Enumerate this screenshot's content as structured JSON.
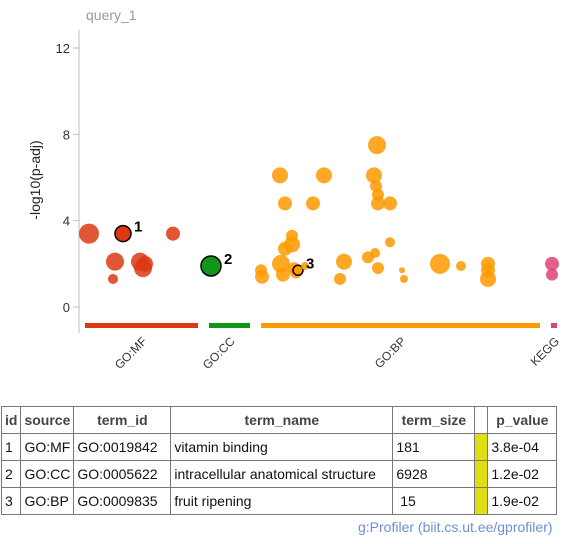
{
  "chart_data": {
    "type": "scatter",
    "title": "query_1",
    "ylabel": "-log10(p-adj)",
    "ylim": [
      -0.5,
      13
    ],
    "yticks": [
      0,
      4,
      8,
      12
    ],
    "grid": false,
    "sources": [
      {
        "name": "GO:MF",
        "color": "#dc3912"
      },
      {
        "name": "GO:CC",
        "color": "#109618"
      },
      {
        "name": "GO:BP",
        "color": "#ff9900"
      },
      {
        "name": "KEGG",
        "color": "#dd4477"
      }
    ],
    "series": [
      {
        "name": "GO:MF",
        "points": [
          {
            "y": 3.4,
            "size": 10
          },
          {
            "y": 3.4,
            "size": 8,
            "label": "1"
          },
          {
            "y": 3.4,
            "size": 7
          },
          {
            "y": 2.1,
            "size": 9
          },
          {
            "y": 2.1,
            "size": 9
          },
          {
            "y": 2.0,
            "size": 8
          },
          {
            "y": 1.8,
            "size": 9
          },
          {
            "y": 1.3,
            "size": 5
          }
        ]
      },
      {
        "name": "GO:CC",
        "points": [
          {
            "y": 1.9,
            "size": 10,
            "label": "2"
          }
        ]
      },
      {
        "name": "GO:BP",
        "points": [
          {
            "y": 1.7,
            "size": 6
          },
          {
            "y": 1.4,
            "size": 7
          },
          {
            "y": 6.1,
            "size": 8
          },
          {
            "y": 2.0,
            "size": 9
          },
          {
            "y": 1.5,
            "size": 7
          },
          {
            "y": 2.7,
            "size": 7
          },
          {
            "y": 4.8,
            "size": 7
          },
          {
            "y": 3.3,
            "size": 6
          },
          {
            "y": 2.9,
            "size": 8
          },
          {
            "y": 1.8,
            "size": 6
          },
          {
            "y": 1.6,
            "size": 6
          },
          {
            "y": 1.7,
            "size": 5,
            "label": "3"
          },
          {
            "y": 1.9,
            "size": 4
          },
          {
            "y": 4.8,
            "size": 7
          },
          {
            "y": 6.1,
            "size": 8
          },
          {
            "y": 1.3,
            "size": 6
          },
          {
            "y": 2.1,
            "size": 8
          },
          {
            "y": 2.3,
            "size": 6
          },
          {
            "y": 7.5,
            "size": 9
          },
          {
            "y": 6.1,
            "size": 8
          },
          {
            "y": 5.6,
            "size": 6
          },
          {
            "y": 5.2,
            "size": 6
          },
          {
            "y": 4.8,
            "size": 7
          },
          {
            "y": 2.5,
            "size": 5
          },
          {
            "y": 1.8,
            "size": 6
          },
          {
            "y": 4.8,
            "size": 7
          },
          {
            "y": 3.0,
            "size": 5
          },
          {
            "y": 1.7,
            "size": 3
          },
          {
            "y": 1.3,
            "size": 4
          },
          {
            "y": 2.0,
            "size": 10
          },
          {
            "y": 1.9,
            "size": 5
          },
          {
            "y": 2.0,
            "size": 7
          },
          {
            "y": 1.7,
            "size": 7
          },
          {
            "y": 1.3,
            "size": 8
          }
        ]
      },
      {
        "name": "KEGG",
        "points": [
          {
            "y": 2.0,
            "size": 7
          },
          {
            "y": 1.5,
            "size": 6
          }
        ]
      }
    ]
  },
  "table": {
    "headers": [
      "id",
      "source",
      "term_id",
      "term_name",
      "term_size",
      "",
      "p_value"
    ],
    "rows": [
      {
        "id": "1",
        "source": "GO:MF",
        "term_id": "GO:0019842",
        "term_name": "vitamin binding",
        "term_size": "181",
        "p_value": "3.8e-04"
      },
      {
        "id": "2",
        "source": "GO:CC",
        "term_id": "GO:0005622",
        "term_name": "intracellular anatomical structure",
        "term_size": "6928",
        "p_value": "1.2e-02"
      },
      {
        "id": "3",
        "source": "GO:BP",
        "term_id": "GO:0009835",
        "term_name": "fruit ripening",
        "term_size": " 15",
        "p_value": "1.9e-02"
      }
    ],
    "pvalue_color": "#e0df16"
  },
  "credit": "g:Profiler (biit.cs.ut.ee/gprofiler)"
}
